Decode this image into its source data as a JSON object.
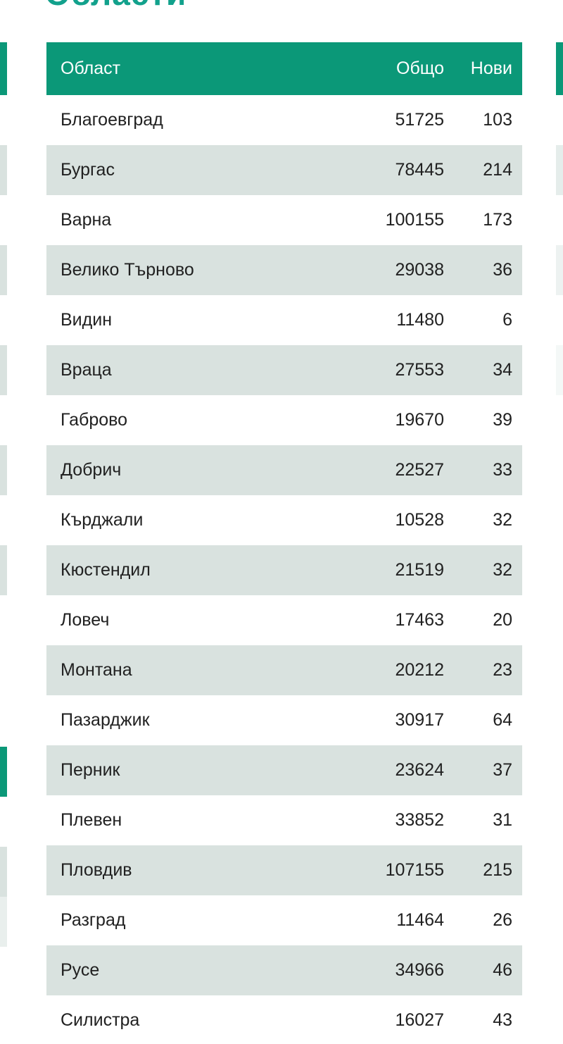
{
  "page": {
    "title_clipped": "Области",
    "accent_green": "#0b9878",
    "title_teal": "#12a18c",
    "row_alt_color": "#d9e2df"
  },
  "table": {
    "columns": [
      "Област",
      "Общо",
      "Нови"
    ],
    "rows": [
      {
        "region": "Благоевград",
        "total": "51725",
        "new": "103"
      },
      {
        "region": "Бургас",
        "total": "78445",
        "new": "214"
      },
      {
        "region": "Варна",
        "total": "100155",
        "new": "173"
      },
      {
        "region": "Велико Търново",
        "total": "29038",
        "new": "36"
      },
      {
        "region": "Видин",
        "total": "11480",
        "new": "6"
      },
      {
        "region": "Враца",
        "total": "27553",
        "new": "34"
      },
      {
        "region": "Габрово",
        "total": "19670",
        "new": "39"
      },
      {
        "region": "Добрич",
        "total": "22527",
        "new": "33"
      },
      {
        "region": "Кърджали",
        "total": "10528",
        "new": "32"
      },
      {
        "region": "Кюстендил",
        "total": "21519",
        "new": "32"
      },
      {
        "region": "Ловеч",
        "total": "17463",
        "new": "20"
      },
      {
        "region": "Монтана",
        "total": "20212",
        "new": "23"
      },
      {
        "region": "Пазарджик",
        "total": "30917",
        "new": "64"
      },
      {
        "region": "Перник",
        "total": "23624",
        "new": "37"
      },
      {
        "region": "Плевен",
        "total": "33852",
        "new": "31"
      },
      {
        "region": "Пловдив",
        "total": "107155",
        "new": "215"
      },
      {
        "region": "Разград",
        "total": "11464",
        "new": "26"
      },
      {
        "region": "Русе",
        "total": "34966",
        "new": "46"
      },
      {
        "region": "Силистра",
        "total": "16027",
        "new": "43"
      }
    ]
  }
}
